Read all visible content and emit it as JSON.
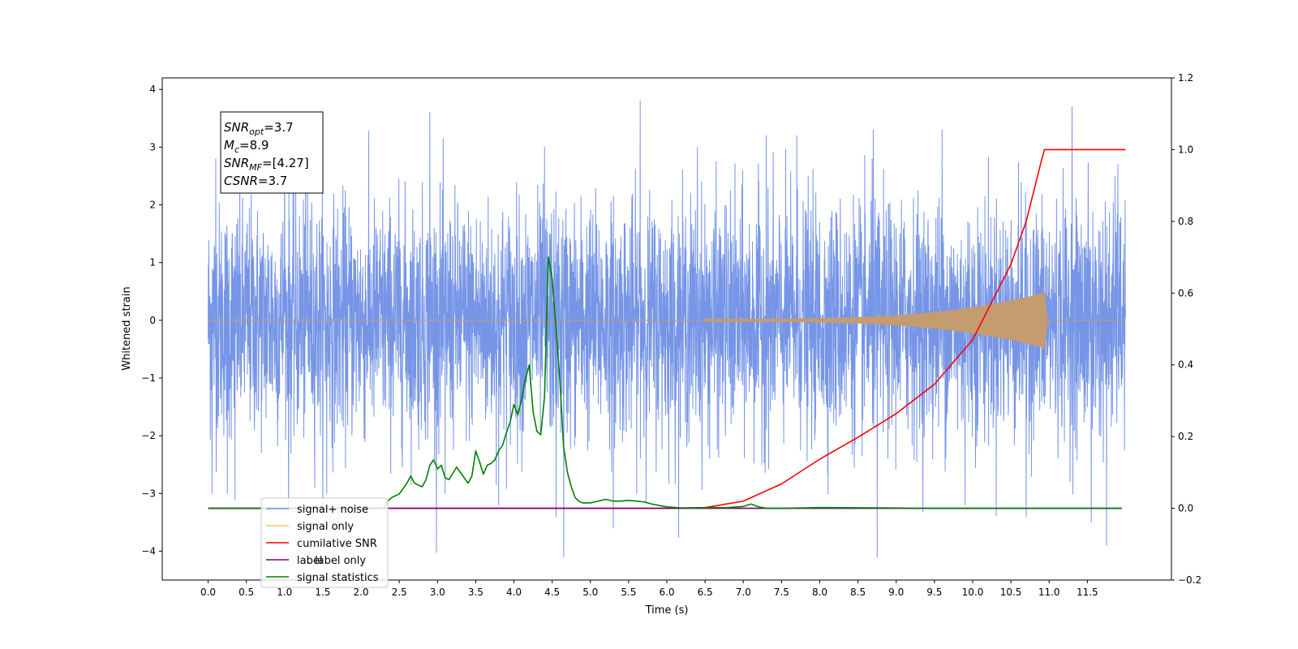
{
  "chart_data": {
    "type": "line",
    "xlabel": "Time (s)",
    "ylabel_left": "Whitened strain",
    "ylabel_right": "",
    "xlim": [
      -0.6,
      12.6
    ],
    "ylim_left": [
      -4.5,
      4.2
    ],
    "ylim_right": [
      -0.2,
      1.2
    ],
    "x_ticks": [
      0.0,
      0.5,
      1.0,
      1.5,
      2.0,
      2.5,
      3.0,
      3.5,
      4.0,
      4.5,
      5.0,
      5.5,
      6.0,
      6.5,
      7.0,
      7.5,
      8.0,
      8.5,
      9.0,
      9.5,
      10.0,
      10.5,
      11.0,
      11.5
    ],
    "x_tick_labels": [
      "0.0",
      "0.5",
      "1.0",
      "1.5",
      "2.0",
      "2.5",
      "3.0",
      "3.5",
      "4.0",
      "4.5",
      "5.0",
      "5.5",
      "6.0",
      "6.5",
      "7.0",
      "7.5",
      "8.0",
      "8.5",
      "9.0",
      "9.5",
      "10.0",
      "10.5",
      "11.0",
      "11.5"
    ],
    "y_ticks_left": [
      -4,
      -3,
      -2,
      -1,
      0,
      1,
      2,
      3,
      4
    ],
    "y_tick_labels_left": [
      "−4",
      "−3",
      "−2",
      "−1",
      "0",
      "1",
      "2",
      "3",
      "4"
    ],
    "y_ticks_right": [
      -0.2,
      0.0,
      0.2,
      0.4,
      0.6,
      0.8,
      1.0,
      1.2
    ],
    "y_tick_labels_right": [
      "−0.2",
      "0.0",
      "0.2",
      "0.4",
      "0.6",
      "0.8",
      "1.0",
      "1.2"
    ],
    "grid": false,
    "legend_position": "lower-left",
    "annotation": {
      "lines": [
        {
          "base": "SNR",
          "sub": "opt",
          "value": "=3.7"
        },
        {
          "base": "M",
          "sub": "c",
          "value": "=8.9"
        },
        {
          "base": "SNR",
          "sub": "MF",
          "value": "=[4.27]"
        },
        {
          "base": "CSNR",
          "sub": "",
          "value": "=3.7"
        }
      ],
      "position": "top-left"
    },
    "series": [
      {
        "name": "signal+ noise",
        "axis": "left",
        "color": "#6f8fe6",
        "description_kind": "noise",
        "x_range": [
          0.0,
          12.0
        ],
        "amplitude_typical": 1.0,
        "peak_points": [
          [
            0.05,
            -3.0
          ],
          [
            0.1,
            2.8
          ],
          [
            0.25,
            -3.0
          ],
          [
            0.35,
            -3.1
          ],
          [
            1.0,
            2.9
          ],
          [
            1.05,
            -3.3
          ],
          [
            1.3,
            3.2
          ],
          [
            1.55,
            -3.0
          ],
          [
            2.9,
            3.6
          ],
          [
            3.1,
            -3.0
          ],
          [
            3.8,
            -3.2
          ],
          [
            4.4,
            3.0
          ],
          [
            4.55,
            -3.4
          ],
          [
            4.65,
            -4.1
          ],
          [
            5.3,
            -3.6
          ],
          [
            5.65,
            3.8
          ],
          [
            6.4,
            3.0
          ],
          [
            7.3,
            3.2
          ],
          [
            7.7,
            3.2
          ],
          [
            8.7,
            3.3
          ],
          [
            8.75,
            -4.1
          ],
          [
            9.6,
            3.3
          ],
          [
            9.9,
            -3.2
          ],
          [
            10.7,
            -3.4
          ],
          [
            11.3,
            3.7
          ],
          [
            11.55,
            -3.5
          ],
          [
            11.75,
            -3.9
          ],
          [
            11.9,
            2.7
          ]
        ]
      },
      {
        "name": "signal only",
        "axis": "left",
        "color": "#c49c6f",
        "description_kind": "chirp",
        "x_range": [
          0.0,
          12.0
        ],
        "chirp_start": 6.5,
        "chirp_merger": 10.93,
        "chirp_peak_amplitude": 0.45
      },
      {
        "name": "cumilative SNR",
        "axis": "right",
        "color": "#ff0000",
        "x": [
          0.0,
          6.0,
          6.5,
          7.0,
          7.5,
          8.0,
          8.5,
          9.0,
          9.5,
          10.0,
          10.5,
          10.7,
          10.9,
          10.94,
          12.0
        ],
        "y": [
          0.0,
          0.0,
          0.002,
          0.02,
          0.068,
          0.137,
          0.198,
          0.264,
          0.346,
          0.47,
          0.68,
          0.8,
          0.97,
          1.0,
          1.0
        ]
      },
      {
        "name": "label only",
        "axis": "right",
        "color": "#7f007f",
        "x": [
          0.0,
          11.95
        ],
        "y": [
          0.0,
          0.0
        ]
      },
      {
        "name": "signal statistics",
        "axis": "right",
        "color": "#008000",
        "x": [
          0.0,
          2.3,
          2.35,
          2.4,
          2.5,
          2.6,
          2.65,
          2.7,
          2.8,
          2.85,
          2.9,
          2.95,
          3.0,
          3.05,
          3.1,
          3.15,
          3.25,
          3.3,
          3.4,
          3.45,
          3.5,
          3.55,
          3.6,
          3.65,
          3.7,
          3.75,
          3.8,
          3.85,
          3.9,
          3.95,
          4.0,
          4.05,
          4.1,
          4.15,
          4.2,
          4.25,
          4.3,
          4.35,
          4.4,
          4.45,
          4.5,
          4.55,
          4.6,
          4.65,
          4.7,
          4.75,
          4.8,
          4.85,
          4.9,
          5.0,
          5.1,
          5.2,
          5.3,
          5.4,
          5.5,
          5.6,
          5.7,
          5.8,
          5.9,
          6.0,
          6.2,
          6.5,
          6.8,
          7.0,
          7.1,
          7.2,
          7.3,
          7.5,
          8.0,
          9.0,
          9.2,
          10.0,
          11.95
        ],
        "y": [
          0.0,
          0.0,
          0.02,
          0.03,
          0.04,
          0.07,
          0.09,
          0.07,
          0.06,
          0.08,
          0.12,
          0.135,
          0.11,
          0.12,
          0.085,
          0.08,
          0.115,
          0.1,
          0.07,
          0.09,
          0.16,
          0.13,
          0.095,
          0.12,
          0.125,
          0.135,
          0.16,
          0.175,
          0.21,
          0.24,
          0.29,
          0.26,
          0.305,
          0.36,
          0.4,
          0.27,
          0.215,
          0.205,
          0.31,
          0.7,
          0.64,
          0.5,
          0.36,
          0.17,
          0.1,
          0.06,
          0.03,
          0.02,
          0.015,
          0.015,
          0.02,
          0.025,
          0.02,
          0.02,
          0.022,
          0.02,
          0.018,
          0.012,
          0.008,
          0.004,
          0.001,
          0.002,
          0.002,
          0.005,
          0.012,
          0.004,
          0.0,
          0.0,
          0.002,
          0.001,
          0.0,
          0.0,
          0.0
        ]
      }
    ],
    "legend": [
      {
        "label": "signal+ noise",
        "color": "#6f8fe6"
      },
      {
        "label": "signal only",
        "color": "#ffc35a"
      },
      {
        "label": "cumilative SNR",
        "color": "#ff0000"
      },
      {
        "label": "label",
        "color": "#7f007f"
      },
      {
        "label": "signal statistics",
        "color": "#008000"
      }
    ],
    "legend_overlapped_text": "label only"
  }
}
